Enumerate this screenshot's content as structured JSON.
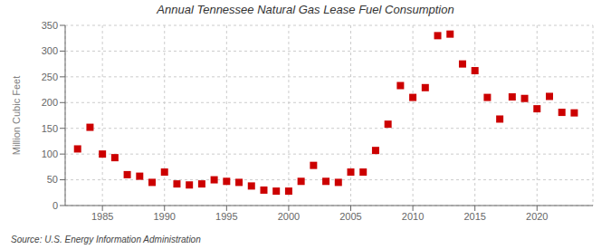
{
  "chart_data": {
    "type": "scatter",
    "title": "Annual Tennessee Natural Gas Lease Fuel Consumption",
    "y_label": "Million Cubic Feet",
    "annotation": "Source: U.S. Energy Information Administration",
    "x": [
      1983,
      1984,
      1985,
      1986,
      1987,
      1988,
      1989,
      1990,
      1991,
      1992,
      1993,
      1994,
      1995,
      1996,
      1997,
      1998,
      1999,
      2000,
      2001,
      2002,
      2003,
      2004,
      2005,
      2006,
      2007,
      2008,
      2009,
      2010,
      2011,
      2012,
      2013,
      2014,
      2015,
      2016,
      2017,
      2018,
      2019,
      2020,
      2021,
      2022,
      2023
    ],
    "values": [
      110,
      152,
      100,
      93,
      60,
      57,
      45,
      65,
      42,
      40,
      42,
      50,
      47,
      45,
      38,
      30,
      28,
      28,
      47,
      78,
      47,
      45,
      65,
      65,
      107,
      158,
      233,
      210,
      229,
      330,
      333,
      275,
      262,
      210,
      168,
      211,
      208,
      188,
      212,
      181,
      180
    ],
    "color": "#cc0000",
    "marker": "square",
    "xlim": [
      1982,
      2024.5
    ],
    "ylim": [
      0,
      350
    ],
    "xticks": [
      1985,
      1990,
      1995,
      2000,
      2005,
      2010,
      2015,
      2020
    ],
    "yticks": [
      0,
      50,
      100,
      150,
      200,
      250,
      300,
      350
    ],
    "grid": true
  }
}
